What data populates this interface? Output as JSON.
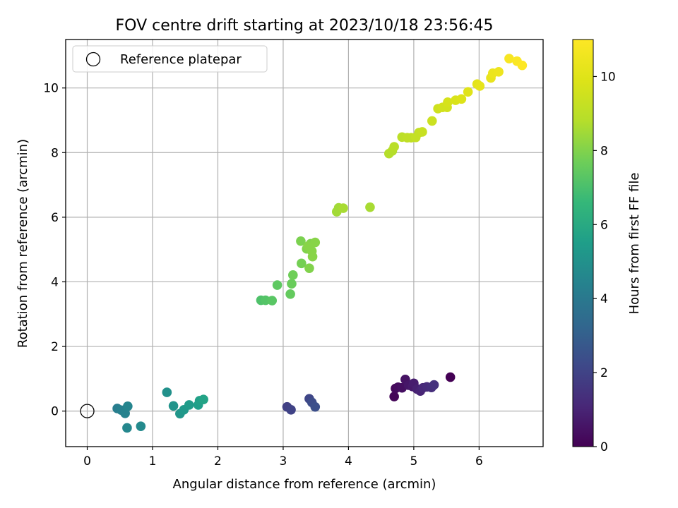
{
  "chart_data": {
    "type": "scatter",
    "title": "FOV centre drift starting at 2023/10/18 23:56:45",
    "xlabel": "Angular distance from reference (arcmin)",
    "ylabel": "Rotation from reference (arcmin)",
    "xlim": [
      -0.33,
      6.98
    ],
    "ylim": [
      -1.1,
      11.5
    ],
    "x_ticks": [
      0,
      1,
      2,
      3,
      4,
      5,
      6
    ],
    "y_ticks": [
      0,
      2,
      4,
      6,
      8,
      10
    ],
    "grid": true,
    "legend": {
      "placement": "top-left",
      "entries": [
        "Reference platepar"
      ]
    },
    "reference_point": {
      "x": 0,
      "y": 0,
      "label": "Reference platepar"
    },
    "colorbar": {
      "label": "Hours from first FF file",
      "min": 0,
      "max": 11,
      "ticks": [
        0,
        2,
        4,
        6,
        8,
        10
      ],
      "colormap": "viridis"
    },
    "points": [
      {
        "x": 4.7,
        "y": 0.45,
        "h": 0.1
      },
      {
        "x": 4.72,
        "y": 0.7,
        "h": 0.2
      },
      {
        "x": 4.76,
        "y": 0.74,
        "h": 0.3
      },
      {
        "x": 4.82,
        "y": 0.72,
        "h": 0.4
      },
      {
        "x": 4.87,
        "y": 0.98,
        "h": 0.5
      },
      {
        "x": 4.92,
        "y": 0.8,
        "h": 0.6
      },
      {
        "x": 4.98,
        "y": 0.76,
        "h": 0.7
      },
      {
        "x": 5.0,
        "y": 0.86,
        "h": 0.8
      },
      {
        "x": 5.05,
        "y": 0.68,
        "h": 0.9
      },
      {
        "x": 5.1,
        "y": 0.62,
        "h": 1.0
      },
      {
        "x": 5.14,
        "y": 0.72,
        "h": 1.1
      },
      {
        "x": 5.2,
        "y": 0.75,
        "h": 1.2
      },
      {
        "x": 5.27,
        "y": 0.73,
        "h": 1.3
      },
      {
        "x": 5.31,
        "y": 0.81,
        "h": 1.4
      },
      {
        "x": 5.56,
        "y": 1.05,
        "h": 0.0
      },
      {
        "x": 3.06,
        "y": 0.13,
        "h": 1.9
      },
      {
        "x": 3.12,
        "y": 0.04,
        "h": 2.0
      },
      {
        "x": 3.4,
        "y": 0.38,
        "h": 2.1
      },
      {
        "x": 3.44,
        "y": 0.27,
        "h": 2.3
      },
      {
        "x": 3.49,
        "y": 0.13,
        "h": 2.4
      },
      {
        "x": 0.46,
        "y": 0.08,
        "h": 4.2
      },
      {
        "x": 0.52,
        "y": 0.03,
        "h": 4.3
      },
      {
        "x": 0.58,
        "y": -0.07,
        "h": 4.4
      },
      {
        "x": 0.62,
        "y": 0.15,
        "h": 4.5
      },
      {
        "x": 0.61,
        "y": -0.52,
        "h": 4.6
      },
      {
        "x": 0.82,
        "y": -0.47,
        "h": 4.7
      },
      {
        "x": 1.22,
        "y": 0.58,
        "h": 5.0
      },
      {
        "x": 1.32,
        "y": 0.16,
        "h": 5.1
      },
      {
        "x": 1.42,
        "y": -0.08,
        "h": 5.2
      },
      {
        "x": 1.48,
        "y": 0.04,
        "h": 5.3
      },
      {
        "x": 1.56,
        "y": 0.19,
        "h": 5.4
      },
      {
        "x": 1.7,
        "y": 0.19,
        "h": 5.5
      },
      {
        "x": 1.72,
        "y": 0.32,
        "h": 5.6
      },
      {
        "x": 1.78,
        "y": 0.36,
        "h": 5.7
      },
      {
        "x": 2.66,
        "y": 3.43,
        "h": 7.1
      },
      {
        "x": 2.73,
        "y": 3.43,
        "h": 7.2
      },
      {
        "x": 2.83,
        "y": 3.42,
        "h": 7.3
      },
      {
        "x": 2.91,
        "y": 3.9,
        "h": 7.4
      },
      {
        "x": 3.11,
        "y": 3.62,
        "h": 7.5
      },
      {
        "x": 3.13,
        "y": 3.94,
        "h": 7.6
      },
      {
        "x": 3.15,
        "y": 4.21,
        "h": 7.7
      },
      {
        "x": 3.28,
        "y": 4.57,
        "h": 7.8
      },
      {
        "x": 3.27,
        "y": 5.26,
        "h": 7.9
      },
      {
        "x": 3.36,
        "y": 5.02,
        "h": 8.0
      },
      {
        "x": 3.4,
        "y": 4.42,
        "h": 8.0
      },
      {
        "x": 3.42,
        "y": 5.18,
        "h": 8.0
      },
      {
        "x": 3.45,
        "y": 4.78,
        "h": 8.1
      },
      {
        "x": 3.38,
        "y": 5.1,
        "h": 8.1
      },
      {
        "x": 3.49,
        "y": 5.22,
        "h": 8.1
      },
      {
        "x": 3.44,
        "y": 4.95,
        "h": 8.1
      },
      {
        "x": 3.82,
        "y": 6.17,
        "h": 8.5
      },
      {
        "x": 3.85,
        "y": 6.29,
        "h": 8.5
      },
      {
        "x": 3.92,
        "y": 6.28,
        "h": 8.6
      },
      {
        "x": 4.33,
        "y": 6.31,
        "h": 8.6
      },
      {
        "x": 4.62,
        "y": 7.97,
        "h": 8.8
      },
      {
        "x": 4.67,
        "y": 8.05,
        "h": 8.8
      },
      {
        "x": 4.7,
        "y": 8.18,
        "h": 8.9
      },
      {
        "x": 4.82,
        "y": 8.48,
        "h": 9.0
      },
      {
        "x": 4.9,
        "y": 8.46,
        "h": 9.1
      },
      {
        "x": 4.96,
        "y": 8.46,
        "h": 9.1
      },
      {
        "x": 5.03,
        "y": 8.47,
        "h": 9.2
      },
      {
        "x": 5.08,
        "y": 8.62,
        "h": 9.2
      },
      {
        "x": 5.13,
        "y": 8.64,
        "h": 9.3
      },
      {
        "x": 5.28,
        "y": 8.98,
        "h": 9.4
      },
      {
        "x": 5.37,
        "y": 9.36,
        "h": 9.5
      },
      {
        "x": 5.44,
        "y": 9.4,
        "h": 9.6
      },
      {
        "x": 5.51,
        "y": 9.4,
        "h": 9.6
      },
      {
        "x": 5.52,
        "y": 9.56,
        "h": 9.7
      },
      {
        "x": 5.64,
        "y": 9.62,
        "h": 9.8
      },
      {
        "x": 5.73,
        "y": 9.66,
        "h": 9.9
      },
      {
        "x": 5.83,
        "y": 9.88,
        "h": 10.0
      },
      {
        "x": 5.97,
        "y": 10.12,
        "h": 10.1
      },
      {
        "x": 6.01,
        "y": 10.06,
        "h": 10.2
      },
      {
        "x": 6.18,
        "y": 10.31,
        "h": 10.3
      },
      {
        "x": 6.21,
        "y": 10.46,
        "h": 10.4
      },
      {
        "x": 6.3,
        "y": 10.5,
        "h": 10.5
      },
      {
        "x": 6.46,
        "y": 10.91,
        "h": 10.8
      },
      {
        "x": 6.58,
        "y": 10.83,
        "h": 10.9
      },
      {
        "x": 6.66,
        "y": 10.7,
        "h": 11.0
      }
    ]
  }
}
